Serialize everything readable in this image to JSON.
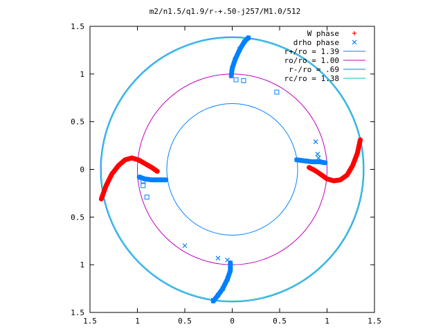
{
  "chart_data": {
    "type": "scatter",
    "title": "m2/n1.5/q1.9/r-+.50-j257/M1.0/512",
    "xlim": [
      -1.5,
      1.5
    ],
    "ylim": [
      -1.5,
      1.5
    ],
    "x_ticks": [
      -1.5,
      -1,
      -0.5,
      0,
      0.5,
      1,
      1.5
    ],
    "y_ticks": [
      -1.5,
      -1,
      -0.5,
      0,
      0.5,
      1,
      1.5
    ],
    "x_tick_labels": [
      "1.5",
      "1",
      "0.5",
      "0",
      "0.5",
      "1",
      "1.5"
    ],
    "y_tick_labels": [
      "1.5",
      "1",
      "0.5",
      "0",
      "0.5",
      "1",
      "1.5"
    ],
    "legend_position": "top-right",
    "grid": false,
    "series": [
      {
        "name": "W phase",
        "kind": "markers",
        "marker": "plus",
        "color": "#ff0000"
      },
      {
        "name": "drho phase",
        "kind": "markers",
        "marker": "cross",
        "color": "#0080ff"
      },
      {
        "name": "r+/ro = 1.39",
        "kind": "circle",
        "radius": 1.39,
        "color": "#0080ff"
      },
      {
        "name": "ro/ro = 1.00",
        "kind": "circle",
        "radius": 1.0,
        "color": "#c000c0"
      },
      {
        "name": "r-/ro = .69",
        "kind": "circle",
        "radius": 0.69,
        "color": "#0080ff"
      },
      {
        "name": "rc/ro = 1.38",
        "kind": "circle",
        "radius": 1.38,
        "color": "#00c0c0"
      }
    ],
    "w_phase_arms": [
      {
        "points": [
          [
            -1.38,
            -0.31
          ],
          [
            -1.33,
            -0.17
          ],
          [
            -1.27,
            -0.05
          ],
          [
            -1.2,
            0.04
          ],
          [
            -1.13,
            0.1
          ],
          [
            -1.06,
            0.12
          ],
          [
            -0.99,
            0.1
          ],
          [
            -0.92,
            0.06
          ],
          [
            -0.85,
            0.02
          ],
          [
            -0.79,
            -0.02
          ]
        ]
      },
      {
        "points": [
          [
            1.35,
            0.31
          ],
          [
            1.32,
            0.17
          ],
          [
            1.27,
            0.04
          ],
          [
            1.21,
            -0.06
          ],
          [
            1.14,
            -0.11
          ],
          [
            1.07,
            -0.12
          ],
          [
            1.0,
            -0.1
          ],
          [
            0.93,
            -0.05
          ],
          [
            0.87,
            -0.01
          ],
          [
            0.81,
            0.02
          ]
        ]
      }
    ],
    "drho_phase_arms": [
      {
        "points": [
          [
            -0.98,
            -0.08
          ],
          [
            -0.92,
            -0.1
          ],
          [
            -0.85,
            -0.11
          ],
          [
            -0.78,
            -0.11
          ],
          [
            -0.7,
            -0.11
          ]
        ]
      },
      {
        "points": [
          [
            0.68,
            0.1
          ],
          [
            0.76,
            0.09
          ],
          [
            0.84,
            0.08
          ],
          [
            0.92,
            0.08
          ],
          [
            0.98,
            0.07
          ]
        ]
      },
      {
        "points": [
          [
            -0.01,
            0.98
          ],
          [
            0.0,
            1.06
          ],
          [
            0.03,
            1.15
          ],
          [
            0.08,
            1.26
          ],
          [
            0.13,
            1.34
          ],
          [
            0.17,
            1.38
          ]
        ]
      },
      {
        "points": [
          [
            -0.02,
            -0.98
          ],
          [
            -0.02,
            -1.06
          ],
          [
            -0.05,
            -1.15
          ],
          [
            -0.1,
            -1.25
          ],
          [
            -0.15,
            -1.32
          ],
          [
            -0.2,
            -1.38
          ]
        ]
      }
    ],
    "drho_square_points": [
      [
        0.04,
        0.94
      ],
      [
        0.12,
        0.93
      ],
      [
        0.47,
        0.81
      ],
      [
        -0.94,
        -0.12
      ],
      [
        -0.94,
        -0.17
      ],
      [
        -0.9,
        -0.29
      ]
    ],
    "drho_scatter_points": [
      [
        0.88,
        0.29
      ],
      [
        0.9,
        0.16
      ],
      [
        0.91,
        0.12
      ],
      [
        -0.5,
        -0.8
      ],
      [
        -0.15,
        -0.93
      ],
      [
        -0.05,
        -0.95
      ],
      [
        -0.2,
        -1.37
      ]
    ]
  }
}
